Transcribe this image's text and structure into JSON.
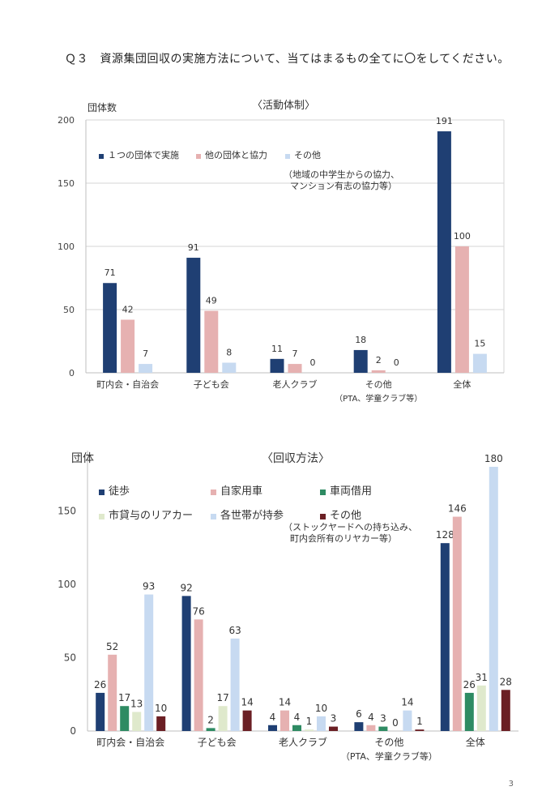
{
  "question": "Ｑ３　資源集団回収の実施方法について、当てはまるもの全てに〇をしてください。",
  "page_number": "3",
  "chart_data": [
    {
      "type": "bar",
      "title": "〈活動体制〉",
      "ylabel": "団体数",
      "xlabel": "",
      "ylim": [
        0,
        200
      ],
      "yticks": [
        0,
        50,
        100,
        150,
        200
      ],
      "grid": true,
      "categories": [
        "町内会・自治会",
        "子ども会",
        "老人クラブ",
        "その他",
        "全体"
      ],
      "category_sublabels": [
        "",
        "",
        "",
        "（PTA、学童クラブ等）",
        ""
      ],
      "series": [
        {
          "name": "１つの団体で実施",
          "color": "#1f3f73",
          "values": [
            71,
            91,
            11,
            18,
            191
          ]
        },
        {
          "name": "他の団体と協力",
          "color": "#e6b1b1",
          "values": [
            42,
            49,
            7,
            2,
            100
          ]
        },
        {
          "name": "その他",
          "color": "#c7daf1",
          "values": [
            7,
            8,
            0,
            0,
            15
          ]
        }
      ],
      "annotation": [
        "（地域の中学生からの協力、",
        "マンション有志の協力等）"
      ]
    },
    {
      "type": "bar",
      "title": "〈回収方法〉",
      "ylabel": "団体",
      "xlabel": "",
      "ylim": [
        0,
        180
      ],
      "yticks": [
        0,
        50,
        100,
        150
      ],
      "grid": false,
      "categories": [
        "町内会・自治会",
        "子ども会",
        "老人クラブ",
        "その他",
        "全体"
      ],
      "category_sublabels": [
        "",
        "",
        "",
        "（PTA、学童クラブ等）",
        ""
      ],
      "series": [
        {
          "name": "徒歩",
          "color": "#1f3f73",
          "values": [
            26,
            92,
            4,
            6,
            128
          ]
        },
        {
          "name": "自家用車",
          "color": "#e6b1b1",
          "values": [
            52,
            76,
            14,
            4,
            146
          ]
        },
        {
          "name": "車両借用",
          "color": "#2e8b63",
          "values": [
            17,
            2,
            4,
            3,
            26
          ]
        },
        {
          "name": "市貸与のリアカー",
          "color": "#dfe9cc",
          "values": [
            13,
            17,
            1,
            0,
            31
          ]
        },
        {
          "name": "各世帯が持参",
          "color": "#c7daf1",
          "values": [
            93,
            63,
            10,
            14,
            180
          ]
        },
        {
          "name": "その他",
          "color": "#6b1f24",
          "values": [
            10,
            14,
            3,
            1,
            28
          ]
        }
      ],
      "annotation": [
        "（ストックヤードへの持ち込み、",
        "町内会所有のリヤカー等）"
      ]
    }
  ]
}
